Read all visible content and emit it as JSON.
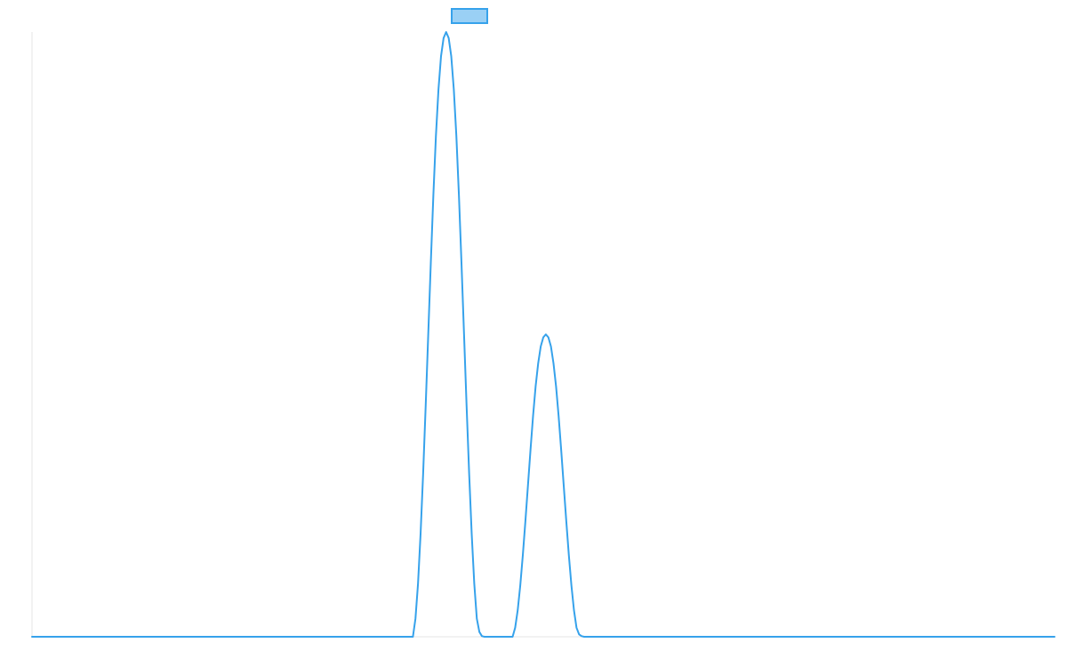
{
  "chart_data": {
    "type": "line",
    "title": "",
    "xlabel": "",
    "ylabel": "",
    "legend": {
      "placement": "top-center",
      "swatch_fill": "#9ad0f5",
      "swatch_stroke": "#36a2eb"
    },
    "grid": false,
    "xlim": [
      0,
      1
    ],
    "ylim": [
      0,
      1
    ],
    "series": [
      {
        "color": "#36a2eb",
        "x": [
          0,
          0.3725,
          0.375,
          0.3775,
          0.38,
          0.3825,
          0.385,
          0.3875,
          0.39,
          0.3925,
          0.395,
          0.3975,
          0.4,
          0.4025,
          0.405,
          0.4075,
          0.41,
          0.4125,
          0.415,
          0.4175,
          0.42,
          0.4225,
          0.425,
          0.4275,
          0.43,
          0.4325,
          0.435,
          0.4375,
          0.44,
          0.4425,
          0.445,
          0.47,
          0.4725,
          0.475,
          0.4775,
          0.48,
          0.4825,
          0.485,
          0.4875,
          0.49,
          0.4925,
          0.495,
          0.4975,
          0.5,
          0.5025,
          0.505,
          0.5075,
          0.51,
          0.5125,
          0.515,
          0.5175,
          0.52,
          0.5225,
          0.525,
          0.5275,
          0.53,
          0.5325,
          0.535,
          0.5375,
          0.54,
          0.5425,
          0.545,
          1
        ],
        "y": [
          0,
          0,
          0.03,
          0.088,
          0.17,
          0.27,
          0.382,
          0.5,
          0.618,
          0.73,
          0.828,
          0.905,
          0.96,
          0.99,
          1.0,
          0.99,
          0.96,
          0.905,
          0.828,
          0.73,
          0.618,
          0.5,
          0.382,
          0.27,
          0.17,
          0.088,
          0.03,
          0.008,
          0.001,
          0,
          0,
          0,
          0.015,
          0.044,
          0.085,
          0.135,
          0.191,
          0.25,
          0.309,
          0.365,
          0.414,
          0.452,
          0.48,
          0.495,
          0.5,
          0.495,
          0.48,
          0.452,
          0.414,
          0.365,
          0.309,
          0.25,
          0.191,
          0.135,
          0.085,
          0.044,
          0.015,
          0.004,
          0.001,
          0,
          0,
          0,
          0
        ]
      }
    ]
  }
}
